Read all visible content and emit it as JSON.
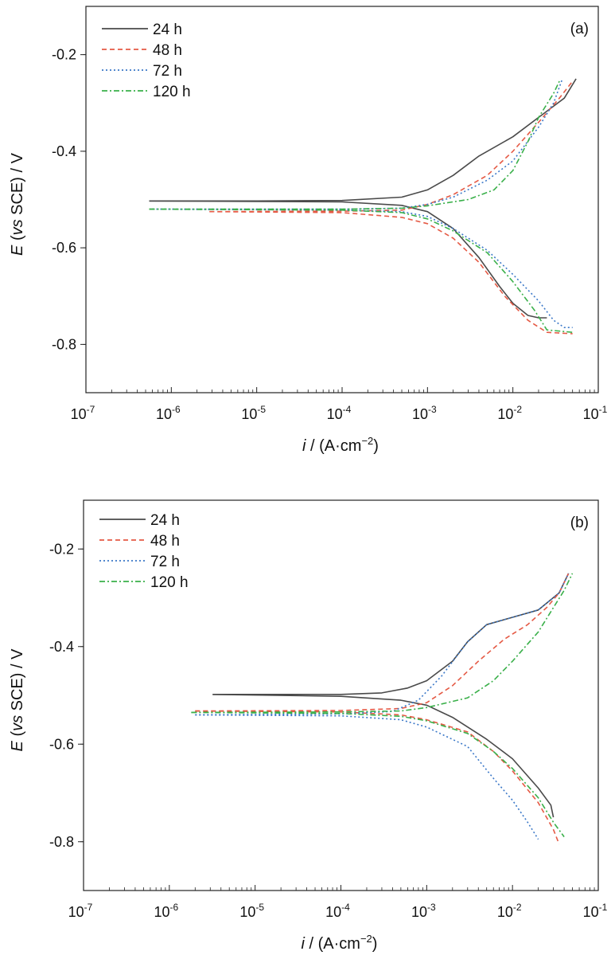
{
  "chart_data": [
    {
      "type": "line",
      "panel_label": "(a)",
      "xlabel": {
        "italic": "i",
        "rest": " / (A·cm",
        "sup": "−2",
        "close": ")"
      },
      "ylabel": {
        "italic": "E",
        "paren_open": " (",
        "italic2": "vs",
        "rest": " SCE) / V"
      },
      "x_scale": "log",
      "xlim": [
        1e-07,
        0.1
      ],
      "ylim": [
        -0.9,
        -0.1
      ],
      "x_ticks": [
        {
          "exp": "-7",
          "value": 1e-07
        },
        {
          "exp": "-6",
          "value": 1e-06
        },
        {
          "exp": "-5",
          "value": 1e-05
        },
        {
          "exp": "-4",
          "value": 0.0001
        },
        {
          "exp": "-3",
          "value": 0.001
        },
        {
          "exp": "-2",
          "value": 0.01
        },
        {
          "exp": "-1",
          "value": 0.1
        }
      ],
      "y_ticks": [
        {
          "label": "-0.2",
          "value": -0.2
        },
        {
          "label": "-0.4",
          "value": -0.4
        },
        {
          "label": "-0.6",
          "value": -0.6
        },
        {
          "label": "-0.8",
          "value": -0.8
        }
      ],
      "legend_position": "top-left",
      "series": [
        {
          "name": "24 h",
          "color": "#4a4a4a",
          "dash": "solid",
          "anodic": [
            [
              5.5e-07,
              -0.503
            ],
            [
              1e-05,
              -0.503
            ],
            [
              0.0001,
              -0.502
            ],
            [
              0.0005,
              -0.495
            ],
            [
              0.001,
              -0.48
            ],
            [
              0.002,
              -0.45
            ],
            [
              0.004,
              -0.41
            ],
            [
              0.01,
              -0.37
            ],
            [
              0.02,
              -0.33
            ],
            [
              0.04,
              -0.29
            ],
            [
              0.055,
              -0.25
            ]
          ],
          "cathodic": [
            [
              5.5e-07,
              -0.503
            ],
            [
              0.0001,
              -0.505
            ],
            [
              0.0005,
              -0.512
            ],
            [
              0.001,
              -0.525
            ],
            [
              0.002,
              -0.56
            ],
            [
              0.004,
              -0.62
            ],
            [
              0.007,
              -0.68
            ],
            [
              0.01,
              -0.715
            ],
            [
              0.015,
              -0.74
            ],
            [
              0.02,
              -0.745
            ],
            [
              0.025,
              -0.745
            ]
          ]
        },
        {
          "name": "48 h",
          "color": "#e55a45",
          "dash": "6,4",
          "anodic": [
            [
              2.8e-06,
              -0.525
            ],
            [
              0.0001,
              -0.524
            ],
            [
              0.0005,
              -0.522
            ],
            [
              0.001,
              -0.51
            ],
            [
              0.002,
              -0.49
            ],
            [
              0.005,
              -0.45
            ],
            [
              0.01,
              -0.4
            ],
            [
              0.02,
              -0.34
            ],
            [
              0.035,
              -0.29
            ],
            [
              0.05,
              -0.255
            ]
          ],
          "cathodic": [
            [
              2.8e-06,
              -0.525
            ],
            [
              0.0001,
              -0.527
            ],
            [
              0.0005,
              -0.537
            ],
            [
              0.001,
              -0.55
            ],
            [
              0.002,
              -0.58
            ],
            [
              0.004,
              -0.63
            ],
            [
              0.008,
              -0.7
            ],
            [
              0.015,
              -0.75
            ],
            [
              0.025,
              -0.775
            ],
            [
              0.05,
              -0.778
            ]
          ]
        },
        {
          "name": "72 h",
          "color": "#3b78c8",
          "dash": "2,3",
          "anodic": [
            [
              6e-07,
              -0.52
            ],
            [
              0.0001,
              -0.52
            ],
            [
              0.0005,
              -0.518
            ],
            [
              0.001,
              -0.51
            ],
            [
              0.002,
              -0.495
            ],
            [
              0.005,
              -0.46
            ],
            [
              0.01,
              -0.42
            ],
            [
              0.02,
              -0.35
            ],
            [
              0.03,
              -0.3
            ],
            [
              0.038,
              -0.25
            ]
          ],
          "cathodic": [
            [
              6e-07,
              -0.52
            ],
            [
              0.0001,
              -0.522
            ],
            [
              0.0005,
              -0.525
            ],
            [
              0.001,
              -0.535
            ],
            [
              0.002,
              -0.56
            ],
            [
              0.005,
              -0.605
            ],
            [
              0.01,
              -0.655
            ],
            [
              0.02,
              -0.71
            ],
            [
              0.03,
              -0.75
            ],
            [
              0.04,
              -0.765
            ],
            [
              0.05,
              -0.765
            ]
          ]
        },
        {
          "name": "120 h",
          "color": "#3ab04a",
          "dash": "7,3,2,3",
          "anodic": [
            [
              5.5e-07,
              -0.52
            ],
            [
              0.0001,
              -0.52
            ],
            [
              0.0005,
              -0.518
            ],
            [
              0.001,
              -0.513
            ],
            [
              0.003,
              -0.5
            ],
            [
              0.006,
              -0.48
            ],
            [
              0.01,
              -0.44
            ],
            [
              0.015,
              -0.38
            ],
            [
              0.02,
              -0.33
            ],
            [
              0.03,
              -0.28
            ],
            [
              0.035,
              -0.255
            ]
          ],
          "cathodic": [
            [
              5.5e-07,
              -0.52
            ],
            [
              0.0001,
              -0.522
            ],
            [
              0.0005,
              -0.527
            ],
            [
              0.001,
              -0.54
            ],
            [
              0.002,
              -0.565
            ],
            [
              0.005,
              -0.61
            ],
            [
              0.01,
              -0.67
            ],
            [
              0.018,
              -0.73
            ],
            [
              0.025,
              -0.77
            ],
            [
              0.05,
              -0.775
            ]
          ]
        }
      ]
    },
    {
      "type": "line",
      "panel_label": "(b)",
      "xlabel": {
        "italic": "i",
        "rest": " / (A·cm",
        "sup": "−2",
        "close": ")"
      },
      "ylabel": {
        "italic": "E",
        "paren_open": " (",
        "italic2": "vs",
        "rest": " SCE) / V"
      },
      "x_scale": "log",
      "xlim": [
        1e-07,
        0.1
      ],
      "ylim": [
        -0.9,
        -0.1
      ],
      "x_ticks": [
        {
          "exp": "-7",
          "value": 1e-07
        },
        {
          "exp": "-6",
          "value": 1e-06
        },
        {
          "exp": "-5",
          "value": 1e-05
        },
        {
          "exp": "-4",
          "value": 0.0001
        },
        {
          "exp": "-3",
          "value": 0.001
        },
        {
          "exp": "-2",
          "value": 0.01
        },
        {
          "exp": "-1",
          "value": 0.1
        }
      ],
      "y_ticks": [
        {
          "label": "-0.2",
          "value": -0.2
        },
        {
          "label": "-0.4",
          "value": -0.4
        },
        {
          "label": "-0.6",
          "value": -0.6
        },
        {
          "label": "-0.8",
          "value": -0.8
        }
      ],
      "legend_position": "top-left",
      "series": [
        {
          "name": "24 h",
          "color": "#4a4a4a",
          "dash": "solid",
          "anodic": [
            [
              3.2e-06,
              -0.498
            ],
            [
              0.0001,
              -0.498
            ],
            [
              0.0003,
              -0.495
            ],
            [
              0.0006,
              -0.485
            ],
            [
              0.001,
              -0.47
            ],
            [
              0.002,
              -0.43
            ],
            [
              0.003,
              -0.39
            ],
            [
              0.005,
              -0.355
            ],
            [
              0.01,
              -0.34
            ],
            [
              0.02,
              -0.325
            ],
            [
              0.035,
              -0.29
            ],
            [
              0.045,
              -0.25
            ]
          ],
          "cathodic": [
            [
              3.2e-06,
              -0.498
            ],
            [
              0.0001,
              -0.502
            ],
            [
              0.0005,
              -0.51
            ],
            [
              0.001,
              -0.52
            ],
            [
              0.002,
              -0.545
            ],
            [
              0.005,
              -0.59
            ],
            [
              0.01,
              -0.63
            ],
            [
              0.02,
              -0.69
            ],
            [
              0.028,
              -0.725
            ],
            [
              0.03,
              -0.75
            ]
          ]
        },
        {
          "name": "48 h",
          "color": "#e55a45",
          "dash": "6,4",
          "anodic": [
            [
              2e-06,
              -0.532
            ],
            [
              0.0001,
              -0.531
            ],
            [
              0.0005,
              -0.527
            ],
            [
              0.001,
              -0.515
            ],
            [
              0.002,
              -0.48
            ],
            [
              0.004,
              -0.43
            ],
            [
              0.008,
              -0.385
            ],
            [
              0.015,
              -0.355
            ],
            [
              0.025,
              -0.32
            ],
            [
              0.035,
              -0.29
            ],
            [
              0.045,
              -0.25
            ]
          ],
          "cathodic": [
            [
              2e-06,
              -0.532
            ],
            [
              0.0001,
              -0.534
            ],
            [
              0.0005,
              -0.54
            ],
            [
              0.001,
              -0.55
            ],
            [
              0.003,
              -0.575
            ],
            [
              0.006,
              -0.615
            ],
            [
              0.01,
              -0.655
            ],
            [
              0.02,
              -0.72
            ],
            [
              0.03,
              -0.775
            ],
            [
              0.035,
              -0.805
            ]
          ]
        },
        {
          "name": "72 h",
          "color": "#3b78c8",
          "dash": "2,3",
          "anodic": [
            [
              2e-06,
              -0.54
            ],
            [
              0.0001,
              -0.538
            ],
            [
              0.0004,
              -0.533
            ],
            [
              0.0008,
              -0.51
            ],
            [
              0.0015,
              -0.46
            ],
            [
              0.003,
              -0.39
            ],
            [
              0.005,
              -0.355
            ],
            [
              0.01,
              -0.34
            ],
            [
              0.02,
              -0.325
            ],
            [
              0.035,
              -0.29
            ],
            [
              0.045,
              -0.25
            ]
          ],
          "cathodic": [
            [
              2e-06,
              -0.54
            ],
            [
              0.0001,
              -0.542
            ],
            [
              0.0005,
              -0.55
            ],
            [
              0.001,
              -0.565
            ],
            [
              0.003,
              -0.605
            ],
            [
              0.006,
              -0.67
            ],
            [
              0.01,
              -0.715
            ],
            [
              0.015,
              -0.76
            ],
            [
              0.02,
              -0.795
            ]
          ]
        },
        {
          "name": "120 h",
          "color": "#3ab04a",
          "dash": "7,3,2,3",
          "anodic": [
            [
              1.8e-06,
              -0.535
            ],
            [
              0.0001,
              -0.534
            ],
            [
              0.0005,
              -0.532
            ],
            [
              0.001,
              -0.525
            ],
            [
              0.003,
              -0.505
            ],
            [
              0.006,
              -0.47
            ],
            [
              0.01,
              -0.43
            ],
            [
              0.02,
              -0.37
            ],
            [
              0.03,
              -0.32
            ],
            [
              0.04,
              -0.285
            ],
            [
              0.05,
              -0.25
            ]
          ],
          "cathodic": [
            [
              1.8e-06,
              -0.535
            ],
            [
              0.0001,
              -0.537
            ],
            [
              0.0005,
              -0.543
            ],
            [
              0.001,
              -0.552
            ],
            [
              0.003,
              -0.578
            ],
            [
              0.006,
              -0.615
            ],
            [
              0.01,
              -0.65
            ],
            [
              0.02,
              -0.71
            ],
            [
              0.03,
              -0.76
            ],
            [
              0.04,
              -0.79
            ]
          ]
        }
      ]
    }
  ]
}
